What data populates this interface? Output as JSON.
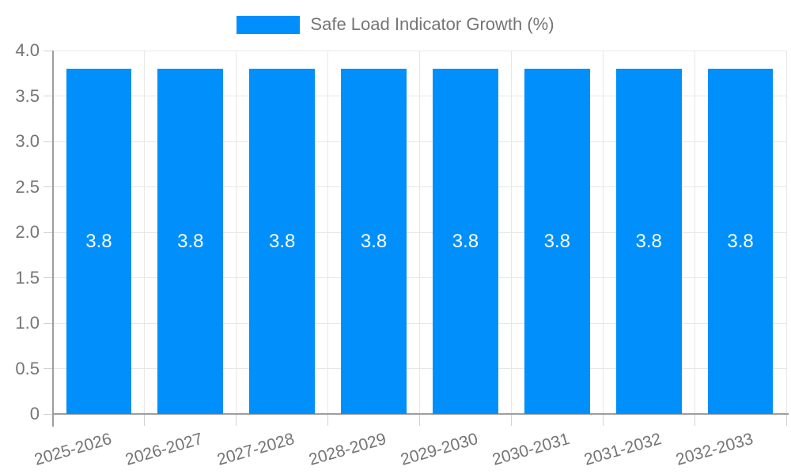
{
  "chart": {
    "legend_label": "Safe Load Indicator Growth (%)"
  },
  "chart_data": {
    "type": "bar",
    "title": "",
    "categories": [
      "2025-2026",
      "2026-2027",
      "2027-2028",
      "2028-2029",
      "2029-2030",
      "2030-2031",
      "2031-2032",
      "2032-2033"
    ],
    "series": [
      {
        "name": "Safe Load Indicator Growth (%)",
        "values": [
          3.8,
          3.8,
          3.8,
          3.8,
          3.8,
          3.8,
          3.8,
          3.8
        ]
      }
    ],
    "bar_labels": [
      "3.8",
      "3.8",
      "3.8",
      "3.8",
      "3.8",
      "3.8",
      "3.8",
      "3.8"
    ],
    "xlabel": "",
    "ylabel": "",
    "ylim": [
      0,
      4.0
    ],
    "ytick_step": 0.5,
    "ytick_labels": [
      "0",
      "0.5",
      "1.0",
      "1.5",
      "2.0",
      "2.5",
      "3.0",
      "3.5",
      "4.0"
    ],
    "grid": true,
    "legend_position": "top",
    "colors": {
      "bar": "#008FFB",
      "grid_line": "#e7e7e7",
      "tick": "#d2d2d2",
      "axis_line": "#9e9e9e",
      "axis_text": "#757575",
      "legend_text": "#757575",
      "value_label": "#ffffff"
    }
  }
}
